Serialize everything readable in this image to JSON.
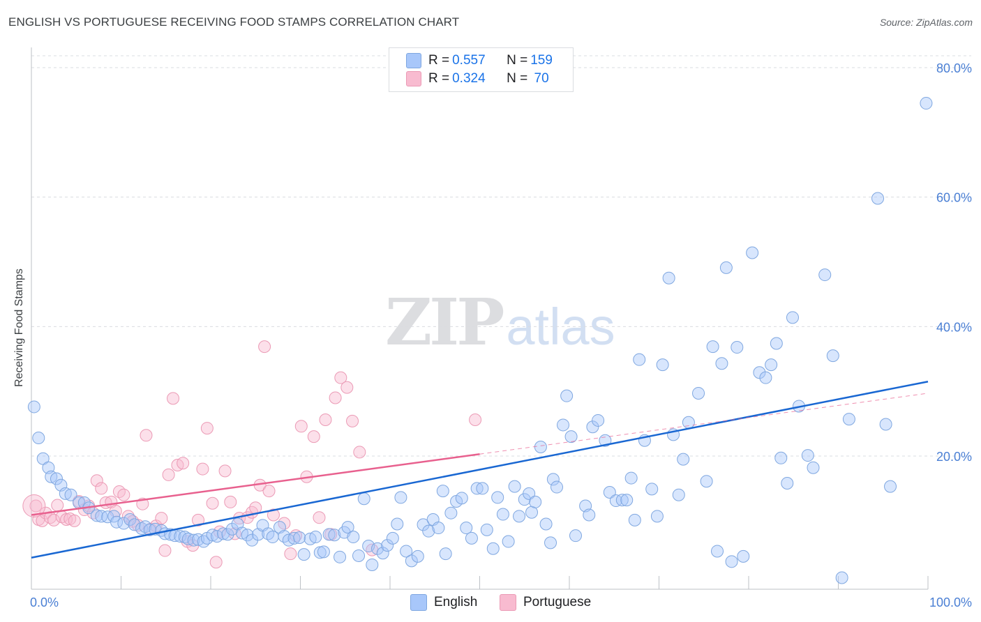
{
  "header": {
    "title": "ENGLISH VS PORTUGUESE RECEIVING FOOD STAMPS CORRELATION CHART",
    "source": "Source: ZipAtlas.com"
  },
  "watermark": {
    "zip": "ZIP",
    "atlas": "atlas"
  },
  "legend": {
    "rows": [
      {
        "r_label": "R = ",
        "r_value": "0.557",
        "n_label": "N = ",
        "n_value": "159",
        "color": "#a8c7fa"
      },
      {
        "r_label": "R = ",
        "r_value": "0.324",
        "n_label": "N = ",
        "n_value": " 70",
        "color": "#f8bbd0"
      }
    ],
    "bottom": [
      {
        "label": "English",
        "color": "#a8c7fa"
      },
      {
        "label": "Portuguese",
        "color": "#f8bbd0"
      }
    ]
  },
  "colors": {
    "english_fill": "#a8c7fa",
    "english_stroke": "#7fa7e0",
    "english_line": "#1967d2",
    "portuguese_fill": "#f8bbd0",
    "portuguese_stroke": "#eb9ab5",
    "portuguese_line": "#e8608e",
    "grid": "#dadce0",
    "tick_label": "#4a7fd4"
  },
  "chart_data": {
    "type": "scatter",
    "title": "ENGLISH VS PORTUGUESE RECEIVING FOOD STAMPS CORRELATION CHART",
    "xlabel": "",
    "ylabel": "Receiving Food Stamps",
    "xlim": [
      0,
      100
    ],
    "ylim": [
      0,
      84
    ],
    "x_tick_labels": [
      "0.0%",
      "100.0%"
    ],
    "y_ticks": [
      20,
      40,
      60,
      80
    ],
    "y_tick_labels": [
      "20.0%",
      "40.0%",
      "60.0%",
      "80.0%"
    ],
    "grid": true,
    "legend_position": "top-center",
    "series": [
      {
        "name": "English",
        "r": 0.557,
        "n": 159,
        "trend": {
          "x": [
            0,
            100
          ],
          "y": [
            4.3,
            31.5
          ]
        },
        "points": [
          [
            0.3,
            27.6
          ],
          [
            0.8,
            22.8
          ],
          [
            1.3,
            19.6
          ],
          [
            1.9,
            18.2
          ],
          [
            2.2,
            16.8
          ],
          [
            2.8,
            16.5
          ],
          [
            3.3,
            15.5
          ],
          [
            3.8,
            14.2
          ],
          [
            4.4,
            14.0
          ],
          [
            5.3,
            12.8
          ],
          [
            5.9,
            12.8
          ],
          [
            6.4,
            12.0
          ],
          [
            7.3,
            10.8
          ],
          [
            7.8,
            10.7
          ],
          [
            8.5,
            10.6
          ],
          [
            9.2,
            10.7
          ],
          [
            9.5,
            9.8
          ],
          [
            10.3,
            9.6
          ],
          [
            11.0,
            10.2
          ],
          [
            11.5,
            9.4
          ],
          [
            12.3,
            8.8
          ],
          [
            12.7,
            9.1
          ],
          [
            13.2,
            8.6
          ],
          [
            13.8,
            8.7
          ],
          [
            14.5,
            8.5
          ],
          [
            14.9,
            8.0
          ],
          [
            15.5,
            7.9
          ],
          [
            16.0,
            7.7
          ],
          [
            16.6,
            7.6
          ],
          [
            17.1,
            7.5
          ],
          [
            17.5,
            7.2
          ],
          [
            18.1,
            7.0
          ],
          [
            18.6,
            7.1
          ],
          [
            19.2,
            6.8
          ],
          [
            19.6,
            7.3
          ],
          [
            20.2,
            7.8
          ],
          [
            20.7,
            7.6
          ],
          [
            21.4,
            8.0
          ],
          [
            21.9,
            7.9
          ],
          [
            22.4,
            8.7
          ],
          [
            23.0,
            9.5
          ],
          [
            23.5,
            8.1
          ],
          [
            24.1,
            7.8
          ],
          [
            24.6,
            7.0
          ],
          [
            25.3,
            7.9
          ],
          [
            25.8,
            9.3
          ],
          [
            26.4,
            8.0
          ],
          [
            26.9,
            7.5
          ],
          [
            27.7,
            9.0
          ],
          [
            28.2,
            7.6
          ],
          [
            28.7,
            7.0
          ],
          [
            29.3,
            7.3
          ],
          [
            29.9,
            7.4
          ],
          [
            30.4,
            4.8
          ],
          [
            31.1,
            7.2
          ],
          [
            31.7,
            7.5
          ],
          [
            32.2,
            5.1
          ],
          [
            32.6,
            5.2
          ],
          [
            33.2,
            7.9
          ],
          [
            33.8,
            7.8
          ],
          [
            34.4,
            4.4
          ],
          [
            34.9,
            8.2
          ],
          [
            35.3,
            9.0
          ],
          [
            35.9,
            7.5
          ],
          [
            36.5,
            4.6
          ],
          [
            37.1,
            13.4
          ],
          [
            37.6,
            6.1
          ],
          [
            38.0,
            3.2
          ],
          [
            38.6,
            5.7
          ],
          [
            39.2,
            5.0
          ],
          [
            39.7,
            6.2
          ],
          [
            40.3,
            7.3
          ],
          [
            40.8,
            9.5
          ],
          [
            41.2,
            13.6
          ],
          [
            41.8,
            5.3
          ],
          [
            42.4,
            3.8
          ],
          [
            43.1,
            4.5
          ],
          [
            43.7,
            9.4
          ],
          [
            44.3,
            8.4
          ],
          [
            44.8,
            10.2
          ],
          [
            45.4,
            8.9
          ],
          [
            45.9,
            14.6
          ],
          [
            46.2,
            4.9
          ],
          [
            46.8,
            11.2
          ],
          [
            47.4,
            13.0
          ],
          [
            48.0,
            13.5
          ],
          [
            48.5,
            8.9
          ],
          [
            49.1,
            7.3
          ],
          [
            49.7,
            15.0
          ],
          [
            50.3,
            15.0
          ],
          [
            50.8,
            8.6
          ],
          [
            51.5,
            5.7
          ],
          [
            52.0,
            13.6
          ],
          [
            52.6,
            11.0
          ],
          [
            53.2,
            6.8
          ],
          [
            53.9,
            15.3
          ],
          [
            54.4,
            10.7
          ],
          [
            55.0,
            13.3
          ],
          [
            55.5,
            14.2
          ],
          [
            55.8,
            11.3
          ],
          [
            56.2,
            12.9
          ],
          [
            56.8,
            21.4
          ],
          [
            57.4,
            9.5
          ],
          [
            57.9,
            6.6
          ],
          [
            58.2,
            16.4
          ],
          [
            58.6,
            15.2
          ],
          [
            59.3,
            24.8
          ],
          [
            59.7,
            29.3
          ],
          [
            60.2,
            23.0
          ],
          [
            60.7,
            7.7
          ],
          [
            61.8,
            12.3
          ],
          [
            62.2,
            10.9
          ],
          [
            62.6,
            24.5
          ],
          [
            63.2,
            25.5
          ],
          [
            64.0,
            22.4
          ],
          [
            64.5,
            14.4
          ],
          [
            65.2,
            13.1
          ],
          [
            65.9,
            13.2
          ],
          [
            66.4,
            13.2
          ],
          [
            66.9,
            16.6
          ],
          [
            67.3,
            10.1
          ],
          [
            67.8,
            34.9
          ],
          [
            68.4,
            22.4
          ],
          [
            69.2,
            14.9
          ],
          [
            69.8,
            10.7
          ],
          [
            70.4,
            34.1
          ],
          [
            71.1,
            47.5
          ],
          [
            71.6,
            23.3
          ],
          [
            72.2,
            14.0
          ],
          [
            72.7,
            19.5
          ],
          [
            73.3,
            25.2
          ],
          [
            74.4,
            29.7
          ],
          [
            75.3,
            16.1
          ],
          [
            76.0,
            36.9
          ],
          [
            76.5,
            5.3
          ],
          [
            77.0,
            34.3
          ],
          [
            77.5,
            49.1
          ],
          [
            78.1,
            3.7
          ],
          [
            78.7,
            36.8
          ],
          [
            79.4,
            4.5
          ],
          [
            80.4,
            51.4
          ],
          [
            81.2,
            32.9
          ],
          [
            81.9,
            32.1
          ],
          [
            82.5,
            34.1
          ],
          [
            83.1,
            37.4
          ],
          [
            83.6,
            19.7
          ],
          [
            84.3,
            15.8
          ],
          [
            84.9,
            41.4
          ],
          [
            85.6,
            27.7
          ],
          [
            86.6,
            20.1
          ],
          [
            87.2,
            18.2
          ],
          [
            88.5,
            48.0
          ],
          [
            89.4,
            35.5
          ],
          [
            90.4,
            1.2
          ],
          [
            91.2,
            25.7
          ],
          [
            94.4,
            59.8
          ],
          [
            95.3,
            24.9
          ],
          [
            95.8,
            15.3
          ],
          [
            99.8,
            74.5
          ]
        ]
      },
      {
        "name": "Portuguese",
        "r": 0.324,
        "n": 70,
        "trend": {
          "x": [
            0,
            50
          ],
          "y": [
            10.9,
            20.3
          ]
        },
        "trend_extension": {
          "x": [
            50,
            100
          ],
          "y": [
            20.3,
            29.7
          ]
        },
        "points": [
          [
            0.5,
            12.3
          ],
          [
            0.8,
            10.2
          ],
          [
            1.2,
            10.0
          ],
          [
            1.6,
            11.2
          ],
          [
            2.1,
            10.5
          ],
          [
            2.5,
            10.1
          ],
          [
            2.9,
            12.4
          ],
          [
            3.4,
            10.6
          ],
          [
            3.9,
            10.2
          ],
          [
            4.3,
            10.3
          ],
          [
            4.8,
            10.0
          ],
          [
            5.3,
            13.0
          ],
          [
            5.9,
            11.7
          ],
          [
            6.4,
            12.3
          ],
          [
            6.9,
            11.2
          ],
          [
            7.3,
            16.2
          ],
          [
            7.8,
            15.0
          ],
          [
            8.3,
            12.8
          ],
          [
            8.9,
            12.9
          ],
          [
            9.4,
            11.5
          ],
          [
            9.8,
            14.5
          ],
          [
            10.3,
            14.0
          ],
          [
            10.8,
            10.7
          ],
          [
            11.3,
            9.9
          ],
          [
            11.9,
            9.3
          ],
          [
            12.4,
            12.6
          ],
          [
            12.8,
            23.2
          ],
          [
            13.3,
            8.7
          ],
          [
            13.9,
            9.2
          ],
          [
            14.5,
            10.4
          ],
          [
            14.9,
            5.4
          ],
          [
            15.3,
            17.1
          ],
          [
            15.8,
            28.9
          ],
          [
            16.3,
            18.6
          ],
          [
            16.9,
            18.9
          ],
          [
            17.4,
            6.8
          ],
          [
            18.0,
            6.2
          ],
          [
            18.6,
            10.1
          ],
          [
            19.1,
            18.0
          ],
          [
            19.6,
            24.3
          ],
          [
            20.2,
            12.7
          ],
          [
            20.6,
            3.6
          ],
          [
            21.0,
            8.3
          ],
          [
            21.6,
            17.7
          ],
          [
            22.2,
            12.9
          ],
          [
            22.7,
            8.0
          ],
          [
            23.2,
            10.4
          ],
          [
            24.1,
            10.5
          ],
          [
            24.6,
            11.3
          ],
          [
            25.0,
            12.0
          ],
          [
            25.5,
            15.5
          ],
          [
            26.0,
            36.9
          ],
          [
            26.5,
            14.6
          ],
          [
            27.0,
            10.9
          ],
          [
            28.2,
            9.6
          ],
          [
            28.9,
            4.9
          ],
          [
            29.5,
            7.7
          ],
          [
            30.1,
            24.6
          ],
          [
            30.7,
            16.8
          ],
          [
            31.5,
            23.0
          ],
          [
            32.1,
            10.5
          ],
          [
            32.8,
            25.6
          ],
          [
            33.4,
            7.9
          ],
          [
            33.9,
            29.0
          ],
          [
            34.5,
            32.1
          ],
          [
            35.2,
            30.6
          ],
          [
            35.8,
            25.4
          ],
          [
            36.6,
            20.6
          ],
          [
            38.0,
            5.5
          ],
          [
            49.5,
            25.6
          ]
        ]
      }
    ]
  }
}
